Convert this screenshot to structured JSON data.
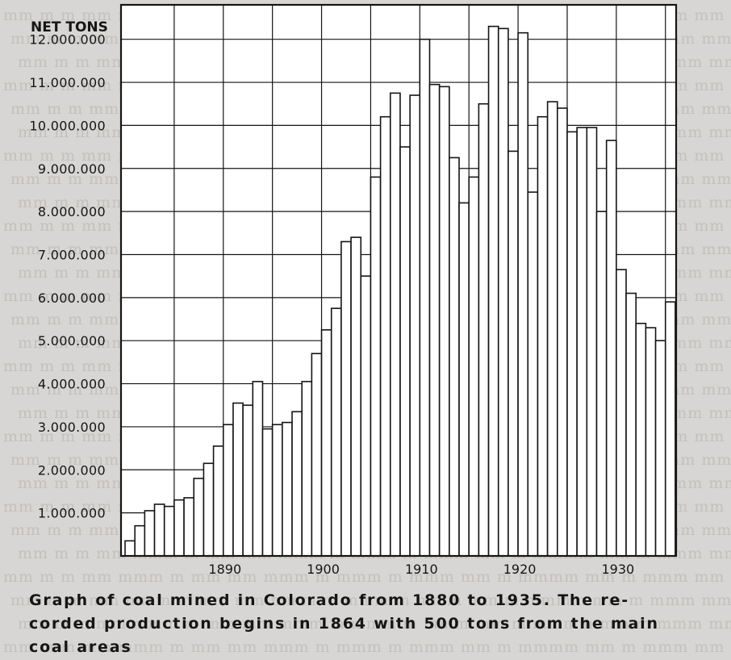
{
  "chart_data": {
    "type": "bar",
    "title": "",
    "ylabel": "NET TONS",
    "xlabel": "",
    "ylim": [
      0,
      12800000
    ],
    "xlim": [
      1880,
      1936
    ],
    "grid": true,
    "yticks": [
      1000000,
      2000000,
      3000000,
      4000000,
      5000000,
      6000000,
      7000000,
      8000000,
      9000000,
      10000000,
      11000000,
      12000000
    ],
    "ytick_labels": [
      "1.000.000",
      "2.000.000",
      "3.000.000",
      "4.000.000",
      "5.000.000",
      "6.000.000",
      "7.000.000",
      "8.000.000",
      "9.000.000",
      "10.000.000",
      "11.000.000",
      "12.000.000"
    ],
    "xticks": [
      1890,
      1900,
      1910,
      1920,
      1930
    ],
    "xtick_labels": [
      "1890",
      "1900",
      "1910",
      "1920",
      "1930"
    ],
    "years": [
      1880,
      1881,
      1882,
      1883,
      1884,
      1885,
      1886,
      1887,
      1888,
      1889,
      1890,
      1891,
      1892,
      1893,
      1894,
      1895,
      1896,
      1897,
      1898,
      1899,
      1900,
      1901,
      1902,
      1903,
      1904,
      1905,
      1906,
      1907,
      1908,
      1909,
      1910,
      1911,
      1912,
      1913,
      1914,
      1915,
      1916,
      1917,
      1918,
      1919,
      1920,
      1921,
      1922,
      1923,
      1924,
      1925,
      1926,
      1927,
      1928,
      1929,
      1930,
      1931,
      1932,
      1933,
      1934,
      1935
    ],
    "values": [
      350000,
      700000,
      1050000,
      1200000,
      1150000,
      1300000,
      1350000,
      1800000,
      2150000,
      2550000,
      3050000,
      3550000,
      3500000,
      4050000,
      2950000,
      3050000,
      3100000,
      3350000,
      4050000,
      4700000,
      5250000,
      5750000,
      7300000,
      7400000,
      6500000,
      8800000,
      10200000,
      10750000,
      9500000,
      10700000,
      12000000,
      10950000,
      10900000,
      9250000,
      8200000,
      8800000,
      10500000,
      12300000,
      12250000,
      9400000,
      12150000,
      8450000,
      10200000,
      10550000,
      10400000,
      9850000,
      9950000,
      9950000,
      8000000,
      9650000,
      6650000,
      6100000,
      5400000,
      5300000,
      5000000,
      5900000
    ]
  },
  "caption": {
    "line1": "Graph of coal mined in Colorado from 1880 to 1935. The re-",
    "line2": "corded production begins in 1864 with 500 tons from the main",
    "line3": "coal areas"
  },
  "colors": {
    "background": "#d8d6d4",
    "plot_background": "#ffffff",
    "ink": "#151515",
    "bleed_text": "#c3c0bd"
  }
}
